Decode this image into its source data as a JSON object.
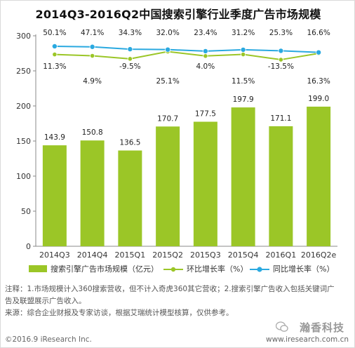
{
  "chart_data": {
    "type": "bar",
    "title": "2014Q3-2016Q2中国搜索引擎行业季度广告市场规模",
    "categories": [
      "2014Q3",
      "2014Q4",
      "2015Q1",
      "2015Q2",
      "2015Q3",
      "2015Q4",
      "2016Q1",
      "2016Q2e"
    ],
    "ylim": [
      0,
      300
    ],
    "yticks": [
      0,
      50,
      100,
      150,
      200,
      250,
      300
    ],
    "grid": false,
    "legend_placement": "bottom",
    "series": [
      {
        "name": "搜索引擎广告市场规模（亿元）",
        "kind": "bar",
        "color": "#9bc627",
        "values": [
          143.9,
          150.8,
          136.5,
          170.7,
          177.5,
          197.9,
          171.1,
          199.0
        ],
        "labels": [
          "143.9",
          "150.8",
          "136.5",
          "170.7",
          "177.5",
          "197.9",
          "171.1",
          "199.0"
        ]
      },
      {
        "name": "环比增长率（%）",
        "kind": "line",
        "color": "#9bc627",
        "values": [
          11.3,
          4.9,
          -9.5,
          25.1,
          4.0,
          11.5,
          -13.5,
          16.3
        ],
        "labels": [
          "11.3%",
          "4.9%",
          "-9.5%",
          "25.1%",
          "4.0%",
          "11.5%",
          "-13.5%",
          "16.3%"
        ]
      },
      {
        "name": "同比增长率（%）",
        "kind": "line",
        "color": "#2aa9e0",
        "values": [
          50.1,
          47.1,
          34.3,
          32.0,
          23.4,
          31.2,
          25.3,
          16.6
        ],
        "labels": [
          "50.1%",
          "47.1%",
          "34.3%",
          "32.0%",
          "23.4%",
          "31.2%",
          "25.3%",
          "16.6%"
        ]
      }
    ]
  },
  "notes": {
    "line1": "注释：1.市场规模计入360搜索营收，但不计入奇虎360其它营收；2.搜索引擎广告收入包括关键词广",
    "line2": "告及联盟展示广告收入。",
    "line3": "来源：综合企业财报及专家访谈，根据艾瑞统计模型核算，仅供参考。"
  },
  "footer": {
    "left": "©2016.9 iResearch Inc.",
    "right": "www.iresearch.com.cn",
    "watermark": "瀚香科技"
  }
}
